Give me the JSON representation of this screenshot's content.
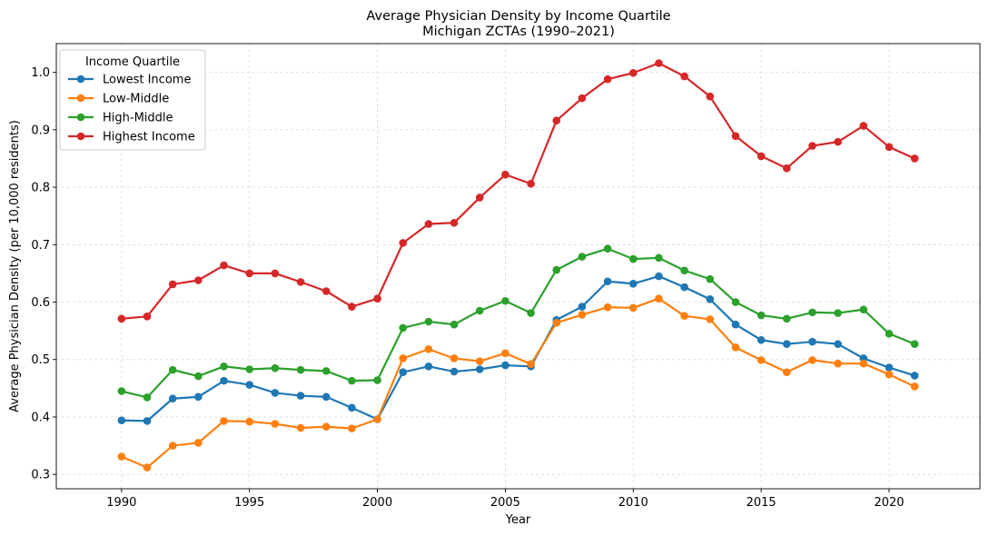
{
  "chart_data": {
    "type": "line",
    "title": "Average Physician Density by Income Quartile",
    "subtitle": "Michigan ZCTAs (1990–2021)",
    "xlabel": "Year",
    "ylabel": "Average Physician Density (per 10,000 residents)",
    "xlim": [
      1987.45,
      2023.55
    ],
    "ylim": [
      0.275,
      1.05
    ],
    "xticks": [
      1990,
      1995,
      2000,
      2005,
      2010,
      2015,
      2020
    ],
    "yticks": [
      0.3,
      0.4,
      0.5,
      0.6,
      0.7,
      0.8,
      0.9,
      1.0
    ],
    "ytick_labels": [
      "0.3",
      "0.4",
      "0.5",
      "0.6",
      "0.7",
      "0.8",
      "0.9",
      "1.0"
    ],
    "grid": true,
    "legend": {
      "title": "Income Quartile",
      "placement": "top-left"
    },
    "x": [
      1990,
      1991,
      1992,
      1993,
      1994,
      1995,
      1996,
      1997,
      1998,
      1999,
      2000,
      2001,
      2002,
      2003,
      2004,
      2005,
      2006,
      2007,
      2008,
      2009,
      2010,
      2011,
      2012,
      2013,
      2014,
      2015,
      2016,
      2017,
      2018,
      2019,
      2020,
      2021
    ],
    "series": [
      {
        "name": "Lowest Income",
        "color": "#1f77b4",
        "values": [
          0.394,
          0.393,
          0.432,
          0.435,
          0.463,
          0.456,
          0.442,
          0.437,
          0.435,
          0.416,
          0.396,
          0.478,
          0.488,
          0.479,
          0.483,
          0.49,
          0.488,
          0.569,
          0.592,
          0.636,
          0.632,
          0.645,
          0.626,
          0.605,
          0.561,
          0.534,
          0.527,
          0.531,
          0.527,
          0.502,
          0.486,
          0.472
        ]
      },
      {
        "name": "Low-Middle",
        "color": "#ff7f0e",
        "values": [
          0.331,
          0.312,
          0.35,
          0.355,
          0.393,
          0.392,
          0.388,
          0.381,
          0.383,
          0.38,
          0.396,
          0.502,
          0.518,
          0.502,
          0.497,
          0.511,
          0.492,
          0.564,
          0.578,
          0.591,
          0.59,
          0.606,
          0.576,
          0.57,
          0.521,
          0.499,
          0.478,
          0.499,
          0.493,
          0.493,
          0.474,
          0.453
        ]
      },
      {
        "name": "High-Middle",
        "color": "#2ca02c",
        "values": [
          0.445,
          0.434,
          0.482,
          0.471,
          0.488,
          0.483,
          0.485,
          0.482,
          0.48,
          0.463,
          0.464,
          0.555,
          0.566,
          0.561,
          0.585,
          0.602,
          0.581,
          0.656,
          0.679,
          0.693,
          0.675,
          0.677,
          0.655,
          0.64,
          0.6,
          0.577,
          0.571,
          0.582,
          0.581,
          0.587,
          0.545,
          0.527
        ]
      },
      {
        "name": "Highest Income",
        "color": "#d62728",
        "values": [
          0.571,
          0.575,
          0.631,
          0.638,
          0.664,
          0.65,
          0.65,
          0.635,
          0.619,
          0.592,
          0.606,
          0.703,
          0.736,
          0.738,
          0.782,
          0.822,
          0.806,
          0.916,
          0.955,
          0.988,
          0.999,
          1.016,
          0.993,
          0.958,
          0.889,
          0.854,
          0.833,
          0.872,
          0.879,
          0.907,
          0.87,
          0.85
        ]
      }
    ]
  }
}
